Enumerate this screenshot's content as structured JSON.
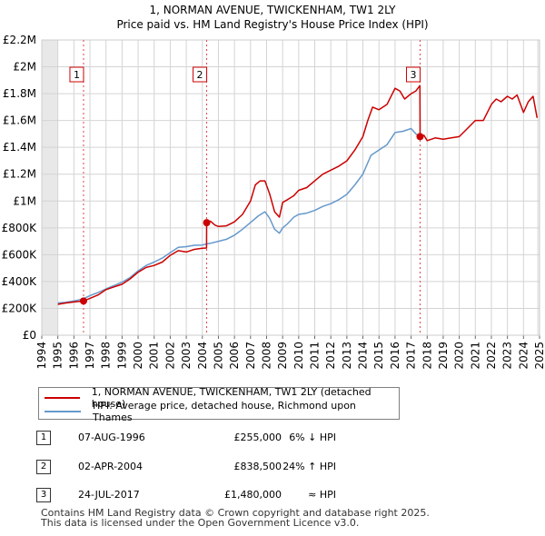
{
  "chart_data": {
    "type": "line",
    "title": "1, NORMAN AVENUE, TWICKENHAM, TW1 2LY",
    "subtitle": "Price paid vs. HM Land Registry's House Price Index (HPI)",
    "ylim": [
      0,
      2200000
    ],
    "y_ticks": [
      {
        "value": 0,
        "label": "£0"
      },
      {
        "value": 200000,
        "label": "£200K"
      },
      {
        "value": 400000,
        "label": "£400K"
      },
      {
        "value": 600000,
        "label": "£600K"
      },
      {
        "value": 800000,
        "label": "£800K"
      },
      {
        "value": 1000000,
        "label": "£1M"
      },
      {
        "value": 1200000,
        "label": "£1.2M"
      },
      {
        "value": 1400000,
        "label": "£1.4M"
      },
      {
        "value": 1600000,
        "label": "£1.6M"
      },
      {
        "value": 1800000,
        "label": "£1.8M"
      },
      {
        "value": 2000000,
        "label": "£2M"
      },
      {
        "value": 2200000,
        "label": "£2.2M"
      }
    ],
    "xlim": [
      1994,
      2025
    ],
    "x_ticks": [
      "1994",
      "1995",
      "1996",
      "1997",
      "1998",
      "1999",
      "2000",
      "2001",
      "2002",
      "2003",
      "2004",
      "2005",
      "2006",
      "2007",
      "2008",
      "2009",
      "2010",
      "2011",
      "2012",
      "2013",
      "2014",
      "2015",
      "2016",
      "2017",
      "2018",
      "2019",
      "2020",
      "2021",
      "2022",
      "2023",
      "2024",
      "2025"
    ],
    "shaded_ranges": [
      [
        1994,
        1995
      ],
      [
        2024.85,
        2025
      ]
    ],
    "grid": true,
    "series": [
      {
        "name": "1, NORMAN AVENUE, TWICKENHAM, TW1 2LY (detached house)",
        "color": "#cc0000",
        "x": [
          1995.0,
          1995.5,
          1996.0,
          1996.6,
          1997.0,
          1997.5,
          1998.0,
          1998.5,
          1999.0,
          1999.5,
          2000.0,
          2000.5,
          2001.0,
          2001.5,
          2002.0,
          2002.5,
          2003.0,
          2003.5,
          2004.0,
          2004.26,
          2004.27,
          2004.5,
          2004.8,
          2005.0,
          2005.5,
          2006.0,
          2006.5,
          2007.0,
          2007.3,
          2007.6,
          2007.9,
          2008.2,
          2008.5,
          2008.8,
          2009.0,
          2009.3,
          2009.7,
          2010.0,
          2010.5,
          2011.0,
          2011.5,
          2012.0,
          2012.5,
          2013.0,
          2013.5,
          2014.0,
          2014.3,
          2014.6,
          2015.0,
          2015.5,
          2016.0,
          2016.3,
          2016.6,
          2017.0,
          2017.3,
          2017.55,
          2017.56,
          2017.8,
          2018.0,
          2018.5,
          2019.0,
          2019.5,
          2020.0,
          2020.5,
          2021.0,
          2021.5,
          2022.0,
          2022.3,
          2022.6,
          2023.0,
          2023.3,
          2023.6,
          2024.0,
          2024.3,
          2024.6,
          2024.85
        ],
        "y": [
          230000,
          240000,
          248000,
          255000,
          275000,
          300000,
          340000,
          360000,
          380000,
          420000,
          470000,
          505000,
          520000,
          545000,
          595000,
          630000,
          620000,
          640000,
          648000,
          650000,
          838500,
          850000,
          820000,
          810000,
          815000,
          845000,
          900000,
          1000000,
          1120000,
          1150000,
          1150000,
          1050000,
          920000,
          880000,
          990000,
          1010000,
          1040000,
          1080000,
          1100000,
          1150000,
          1200000,
          1230000,
          1260000,
          1300000,
          1380000,
          1480000,
          1600000,
          1700000,
          1680000,
          1720000,
          1840000,
          1820000,
          1760000,
          1800000,
          1820000,
          1860000,
          1480000,
          1490000,
          1450000,
          1470000,
          1460000,
          1470000,
          1480000,
          1540000,
          1600000,
          1600000,
          1720000,
          1760000,
          1740000,
          1780000,
          1760000,
          1790000,
          1660000,
          1740000,
          1780000,
          1620000
        ]
      },
      {
        "name": "HPI: Average price, detached house, Richmond upon Thames",
        "color": "#6699cc",
        "x": [
          1995.0,
          1995.5,
          1996.0,
          1996.6,
          1997.0,
          1997.5,
          1998.0,
          1998.5,
          1999.0,
          1999.5,
          2000.0,
          2000.5,
          2001.0,
          2001.5,
          2002.0,
          2002.5,
          2003.0,
          2003.5,
          2004.0,
          2004.26,
          2004.5,
          2005.0,
          2005.5,
          2006.0,
          2006.5,
          2007.0,
          2007.5,
          2007.9,
          2008.2,
          2008.5,
          2008.8,
          2009.0,
          2009.3,
          2009.7,
          2010.0,
          2010.5,
          2011.0,
          2011.5,
          2012.0,
          2012.5,
          2013.0,
          2013.5,
          2014.0,
          2014.5,
          2015.0,
          2015.5,
          2016.0,
          2016.5,
          2017.0,
          2017.3,
          2017.55
        ],
        "y": [
          240000,
          245000,
          255000,
          272000,
          295000,
          318000,
          345000,
          370000,
          395000,
          430000,
          480000,
          520000,
          545000,
          575000,
          615000,
          655000,
          660000,
          670000,
          672000,
          680000,
          685000,
          700000,
          715000,
          745000,
          790000,
          840000,
          890000,
          920000,
          870000,
          790000,
          760000,
          800000,
          830000,
          880000,
          900000,
          910000,
          930000,
          960000,
          980000,
          1010000,
          1050000,
          1120000,
          1200000,
          1340000,
          1380000,
          1420000,
          1510000,
          1520000,
          1540000,
          1500000,
          1480000
        ]
      }
    ],
    "sales": [
      {
        "id": "1",
        "x": 1996.6,
        "y": 255000
      },
      {
        "id": "2",
        "x": 2004.27,
        "y": 838500
      },
      {
        "id": "3",
        "x": 2017.56,
        "y": 1480000
      }
    ]
  },
  "title": "1, NORMAN AVENUE, TWICKENHAM, TW1 2LY",
  "subtitle": "Price paid vs. HM Land Registry's House Price Index (HPI)",
  "legend": {
    "property_label": "1, NORMAN AVENUE, TWICKENHAM, TW1 2LY (detached house)",
    "hpi_label": "HPI: Average price, detached house, Richmond upon Thames",
    "property_color": "#cc0000",
    "hpi_color": "#6699cc"
  },
  "sales_table": [
    {
      "num": "1",
      "date": "07-AUG-1996",
      "price": "£255,000",
      "hpi": "6% ↓ HPI"
    },
    {
      "num": "2",
      "date": "02-APR-2004",
      "price": "£838,500",
      "hpi": "24% ↑ HPI"
    },
    {
      "num": "3",
      "date": "24-JUL-2017",
      "price": "£1,480,000",
      "hpi": "≈ HPI"
    }
  ],
  "footer": {
    "line1": "Contains HM Land Registry data © Crown copyright and database right 2025.",
    "line2": "This data is licensed under the Open Government Licence v3.0."
  }
}
